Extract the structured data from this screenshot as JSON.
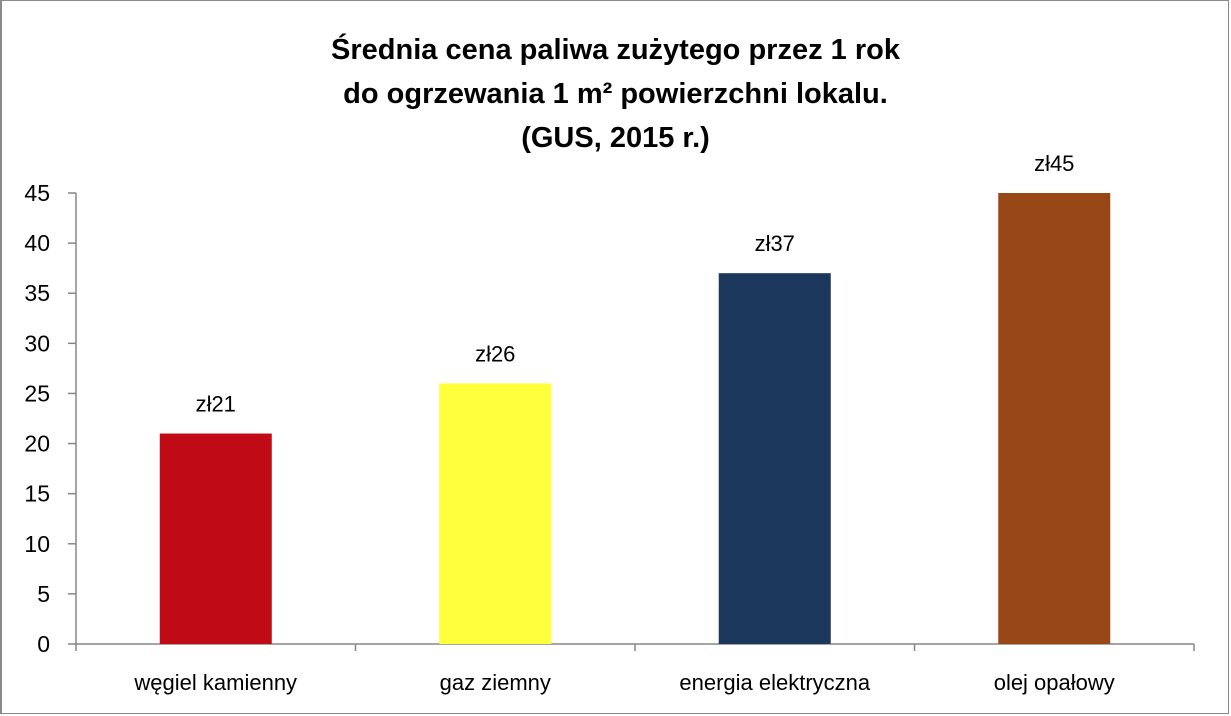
{
  "chart_data": {
    "type": "bar",
    "title_lines": [
      "Średnia cena paliwa zużytego przez 1 rok",
      "do ogrzewania 1 m² powierzchni lokalu.",
      "(GUS, 2015 r.)"
    ],
    "categories": [
      "węgiel kamienny",
      "gaz ziemny",
      "energia elektryczna",
      "olej opałowy"
    ],
    "values": [
      21,
      26,
      37,
      45
    ],
    "data_labels": [
      "zł21",
      "zł26",
      "zł37",
      "zł45"
    ],
    "colors": [
      "#c00a16",
      "#ffff3c",
      "#1b375c",
      "#984817"
    ],
    "ylim": [
      0,
      45
    ],
    "yticks": [
      0,
      5,
      10,
      15,
      20,
      25,
      30,
      35,
      40,
      45
    ],
    "xlabel": "",
    "ylabel": "",
    "grid": false,
    "legend": "none"
  }
}
